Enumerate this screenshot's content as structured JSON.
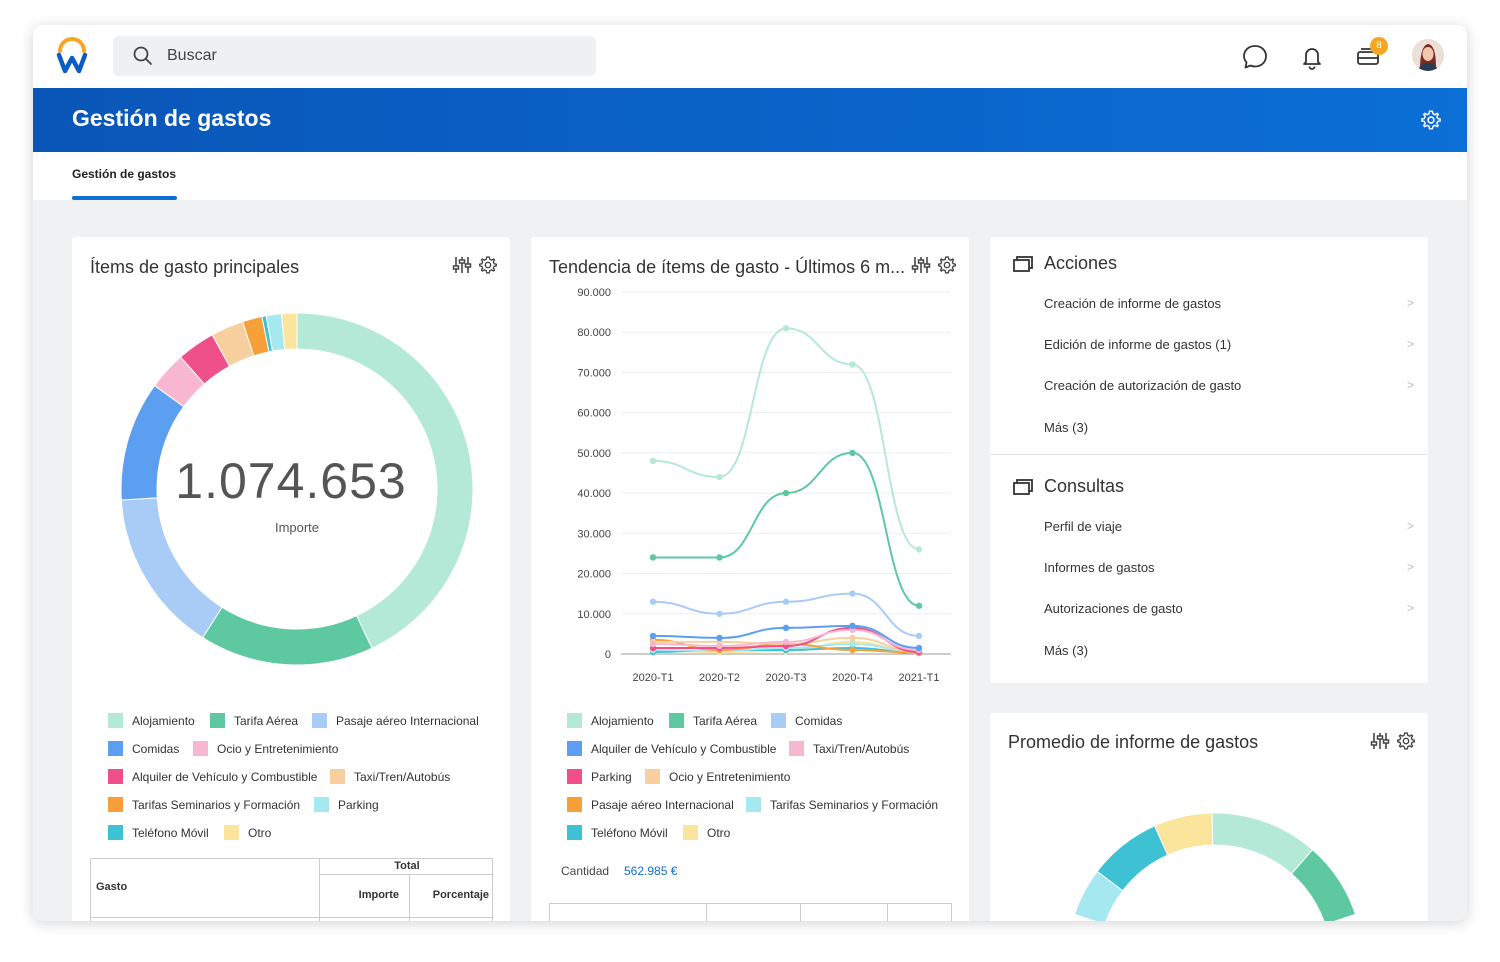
{
  "search": {
    "placeholder": "Buscar"
  },
  "header": {
    "title": "Gestión de gastos"
  },
  "tabs": [
    {
      "label": "Gestión de gastos"
    }
  ],
  "notifications": {
    "inbox_count": "8"
  },
  "card1": {
    "title": "Ítems de gasto principales",
    "total_value": "1.074.653",
    "total_label": "Importe",
    "legend": [
      {
        "label": "Alojamiento",
        "color": "#b4e9d7"
      },
      {
        "label": "Tarifa Aérea",
        "color": "#5ec9a0"
      },
      {
        "label": "Pasaje aéreo Internacional",
        "color": "#a9ccf7"
      },
      {
        "label": "Comidas",
        "color": "#5c9ef0"
      },
      {
        "label": "Ocio y Entretenimiento",
        "color": "#f7b7d0"
      },
      {
        "label": "Alquiler de Vehículo y Combustible",
        "color": "#f0508a"
      },
      {
        "label": "Taxi/Tren/Autobús",
        "color": "#f8cf9e"
      },
      {
        "label": "Tarifas Seminarios y Formación",
        "color": "#f7a03a"
      },
      {
        "label": "Parking",
        "color": "#a6e8f0"
      },
      {
        "label": "Teléfono Móvil",
        "color": "#3ec1d3"
      },
      {
        "label": "Otro",
        "color": "#fbe49c"
      }
    ],
    "table": {
      "col_group": "Total",
      "row_header": "Gasto",
      "col_importe": "Importe",
      "col_porcentaje": "Porcentaje"
    }
  },
  "card2": {
    "title": "Tendencia de ítems de gasto - Últimos 6 m...",
    "legend": [
      {
        "label": "Alojamiento",
        "color": "#b4e9d7"
      },
      {
        "label": "Tarifa Aérea",
        "color": "#5ec9a0"
      },
      {
        "label": "Comidas",
        "color": "#a9ccf7"
      },
      {
        "label": "Alquiler de Vehículo y Combustible",
        "color": "#5c9ef0"
      },
      {
        "label": "Taxi/Tren/Autobús",
        "color": "#f7b7d0"
      },
      {
        "label": "Parking",
        "color": "#f0508a"
      },
      {
        "label": "Ocio y Entretenimiento",
        "color": "#f8cf9e"
      },
      {
        "label": "Pasaje aéreo Internacional",
        "color": "#f7a03a"
      },
      {
        "label": "Tarifas Seminarios y Formación",
        "color": "#a6e8f0"
      },
      {
        "label": "Teléfono Móvil",
        "color": "#3ec1d3"
      },
      {
        "label": "Otro",
        "color": "#fbe49c"
      }
    ],
    "cantidad_label": "Cantidad",
    "cantidad_value": "562.985 €"
  },
  "acciones": {
    "title": "Acciones",
    "items": [
      {
        "label": "Creación de informe de gastos"
      },
      {
        "label": "Edición de informe de gastos (1)"
      },
      {
        "label": "Creación de autorización de gasto"
      },
      {
        "label": "Más (3)"
      }
    ]
  },
  "consultas": {
    "title": "Consultas",
    "items": [
      {
        "label": "Perfil de viaje"
      },
      {
        "label": "Informes de gastos"
      },
      {
        "label": "Autorizaciones de gasto"
      },
      {
        "label": "Más (3)"
      }
    ]
  },
  "card4": {
    "title": "Promedio de informe de gastos"
  },
  "chart_data": [
    {
      "type": "pie",
      "categories": [
        "Alojamiento",
        "Tarifa Aérea",
        "Pasaje aéreo Internacional",
        "Comidas",
        "Ocio y Entretenimiento",
        "Alquiler de Vehículo y Combustible",
        "Taxi/Tren/Autobús",
        "Tarifas Seminarios y Formación",
        "Teléfono Móvil",
        "Parking",
        "Otro"
      ],
      "values": [
        43,
        16,
        15,
        11,
        3.5,
        3.5,
        3,
        1.8,
        0.4,
        1.4,
        1.4
      ],
      "colors": [
        "#b4e9d7",
        "#5ec9a0",
        "#a9ccf7",
        "#5c9ef0",
        "#f7b7d0",
        "#f0508a",
        "#f8cf9e",
        "#f7a03a",
        "#3ec1d3",
        "#a6e8f0",
        "#fbe49c"
      ],
      "title": "Ítems de gasto principales",
      "center_value": "1.074.653"
    },
    {
      "type": "line",
      "x": [
        "2020-T1",
        "2020-T2",
        "2020-T3",
        "2020-T4",
        "2021-T1"
      ],
      "ylim": [
        0,
        90000
      ],
      "yticks": [
        "0",
        "10.000",
        "20.000",
        "30.000",
        "40.000",
        "50.000",
        "60.000",
        "70.000",
        "80.000",
        "90.000"
      ],
      "series": [
        {
          "name": "Alojamiento",
          "color": "#b4e9d7",
          "values": [
            48000,
            44000,
            81000,
            72000,
            26000
          ]
        },
        {
          "name": "Tarifa Aérea",
          "color": "#5ec9a0",
          "values": [
            24000,
            24000,
            40000,
            50000,
            12000
          ]
        },
        {
          "name": "Comidas",
          "color": "#a9ccf7",
          "values": [
            13000,
            10000,
            13000,
            15000,
            4500
          ]
        },
        {
          "name": "Alquiler de Vehículo y Combustible",
          "color": "#5c9ef0",
          "values": [
            4500,
            4000,
            6500,
            7000,
            1500
          ]
        },
        {
          "name": "Taxi/Tren/Autobús",
          "color": "#f7b7d0",
          "values": [
            2500,
            2000,
            3000,
            6000,
            1000
          ]
        },
        {
          "name": "Parking",
          "color": "#f0508a",
          "values": [
            1500,
            1500,
            2000,
            6500,
            500
          ]
        },
        {
          "name": "Ocio y Entretenimiento",
          "color": "#f8cf9e",
          "values": [
            3000,
            3000,
            2500,
            4000,
            500
          ]
        },
        {
          "name": "Pasaje aéreo Internacional",
          "color": "#f7a03a",
          "values": [
            3500,
            1000,
            2500,
            1000,
            300
          ]
        },
        {
          "name": "Tarifas Seminarios y Formación",
          "color": "#a6e8f0",
          "values": [
            1000,
            800,
            1500,
            2500,
            500
          ]
        },
        {
          "name": "Teléfono Móvil",
          "color": "#3ec1d3",
          "values": [
            500,
            1000,
            1000,
            1500,
            300
          ]
        },
        {
          "name": "Otro",
          "color": "#fbe49c",
          "values": [
            800,
            500,
            700,
            3000,
            200
          ]
        }
      ]
    },
    {
      "type": "pie",
      "title": "Promedio de informe de gastos",
      "categories": [
        "Parking",
        "Teléfono Móvil",
        "Otro",
        "Alojamiento",
        "Tarifa Aérea"
      ],
      "colors": [
        "#a6e8f0",
        "#3ec1d3",
        "#fbe49c",
        "#b4e9d7",
        "#5ec9a0"
      ]
    }
  ]
}
